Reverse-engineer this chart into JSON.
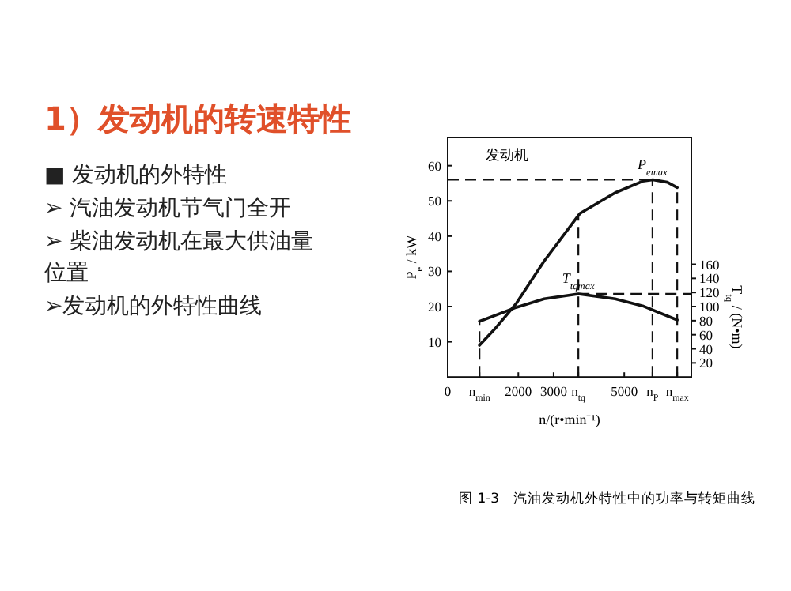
{
  "chart_data": {
    "type": "line",
    "title": "1）发动机的转速特性",
    "subtitle": "发动机",
    "annotations": [
      "■ 发动机的外特性",
      "➢ 汽油发动机节气门全开",
      "➢ 柴油发动机在最大供油量位置",
      "➢发动机的外特性曲线",
      {
        "text": "P$_{emax}$",
        "x": 5800,
        "y": 56
      },
      {
        "text": "T$_{tqmax}$",
        "x": 3700,
        "y": 23.6
      },
      "图 1-3　汽油发动机外特性中的功率与转矩曲线"
    ],
    "xlabel": "n/(r•min⁻¹)",
    "ylabel": "P$_{e}$ / kW",
    "y2label": "T$_{tq}$ / (N•m)",
    "xlim": [
      0,
      6900
    ],
    "ylim": [
      0,
      68
    ],
    "y2lim": [
      0,
      340
    ],
    "xticks": [
      0,
      {
        "value": 900,
        "label": "n$_{min}$"
      },
      2000,
      3000,
      {
        "value": 3700,
        "label": "n$_{tq}$"
      },
      5000,
      {
        "value": 5800,
        "label": "n$_{P}$"
      },
      {
        "value": 6500,
        "label": "n$_{max}$"
      }
    ],
    "yticks": [
      10,
      20,
      30,
      40,
      50,
      60
    ],
    "y2ticks": [
      20,
      40,
      60,
      80,
      100,
      120,
      140,
      160
    ],
    "series": [
      {
        "color": "#111111",
        "axis": "y",
        "x": [
          900,
          1330,
          1950,
          2730,
          3740,
          4740,
          5520,
          5810,
          6220,
          6500
        ],
        "values": [
          9,
          13.6,
          21,
          32.9,
          46.4,
          52.3,
          55.6,
          56,
          55.3,
          53.8
        ]
      },
      {
        "color": "#111111",
        "axis": "y2",
        "x": [
          900,
          1950,
          2730,
          3700,
          4740,
          5520,
          6500
        ],
        "values": [
          79,
          99,
          111,
          118,
          111,
          101,
          81
        ]
      }
    ],
    "ref_lines": [
      {
        "axis": "x",
        "value": 900,
        "line_style": "dashed"
      },
      {
        "axis": "x",
        "value": 3700,
        "line_style": "dashed"
      },
      {
        "axis": "x",
        "value": 5800,
        "line_style": "dashed"
      },
      {
        "axis": "x",
        "value": 6500,
        "line_style": "dashed"
      },
      {
        "axis": "y",
        "value": 56,
        "line_style": "dashed"
      },
      {
        "axis": "y2",
        "value": 118,
        "line_style": "dashed"
      }
    ],
    "marker": "none",
    "line_style": "solid"
  }
}
